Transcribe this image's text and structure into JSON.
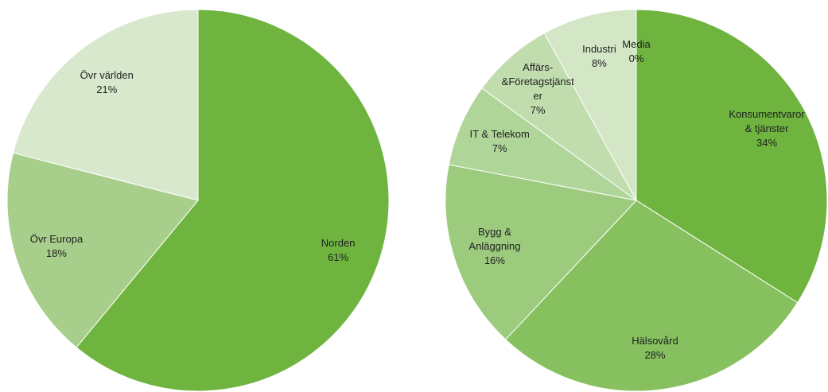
{
  "chart_data": [
    {
      "type": "pie",
      "categories": [
        "Norden",
        "Övr Europa",
        "Övr världen"
      ],
      "values": [
        61,
        18,
        21
      ],
      "value_labels": [
        "61%",
        "18%",
        "21%"
      ],
      "colors": [
        "#6eb43f",
        "#a8ce8b",
        "#d8e8cc"
      ]
    },
    {
      "type": "pie",
      "categories": [
        "Konsumentvaror & tjänster",
        "Hälsovård",
        "Bygg & Anläggning",
        "IT & Telekom",
        "Affärs-&Företagstjänster",
        "Industri",
        "Media"
      ],
      "values": [
        34,
        28,
        16,
        7,
        7,
        8,
        0
      ],
      "value_labels": [
        "34%",
        "28%",
        "16%",
        "7%",
        "7%",
        "8%",
        "0%"
      ],
      "colors": [
        "#6eb43f",
        "#86c05f",
        "#9ccb7d",
        "#b0d598",
        "#c1ddae",
        "#d3e6c6",
        "#e3efda"
      ]
    }
  ]
}
